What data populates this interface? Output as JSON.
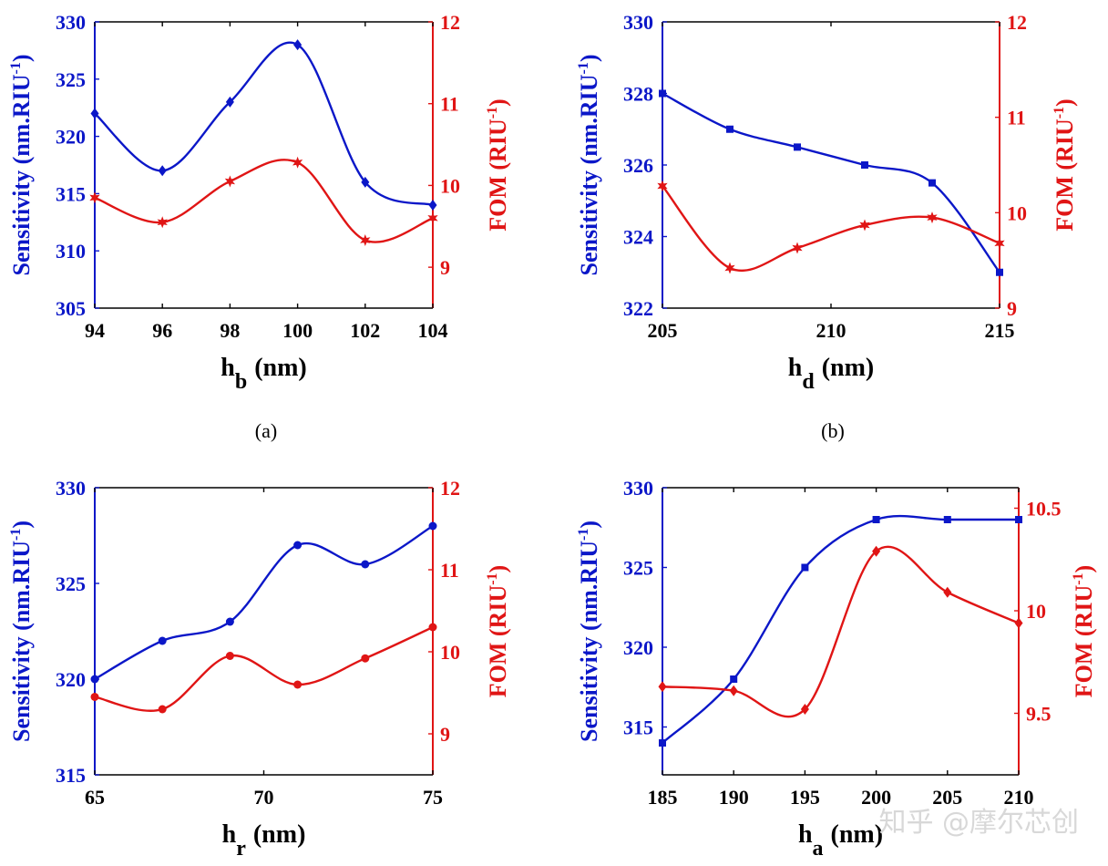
{
  "colors": {
    "sensitivity": "#0b17c8",
    "fom": "#e01515",
    "axis": "#000000"
  },
  "watermark": "知乎 @摩尔芯创",
  "chart_data": [
    {
      "type": "line",
      "caption": "(a)",
      "xlabel": "h",
      "xlabel_sub": "b",
      "xlabel_unit": "(nm)",
      "ylabel_left": "Sensitivity (nm.RIU",
      "ylabel_right": "FOM (RIU",
      "ylabel_sup": "-1",
      "xlim": [
        94,
        104
      ],
      "ylim_left": [
        305,
        330
      ],
      "ylim_right": [
        8.5,
        12
      ],
      "xticks": [
        94,
        96,
        98,
        100,
        102,
        104
      ],
      "yticks_left": [
        305,
        310,
        315,
        320,
        325,
        330
      ],
      "yticks_right": [
        9,
        10,
        11,
        12
      ],
      "series": [
        {
          "name": "Sensitivity",
          "axis": "left",
          "marker": "diamond",
          "x": [
            94,
            96,
            98,
            100,
            102,
            104
          ],
          "y": [
            322,
            317,
            323,
            328,
            316,
            314
          ]
        },
        {
          "name": "FOM",
          "axis": "right",
          "marker": "star",
          "x": [
            94,
            96,
            98,
            100,
            102,
            104
          ],
          "y": [
            9.85,
            9.55,
            10.05,
            10.28,
            9.33,
            9.6
          ]
        }
      ]
    },
    {
      "type": "line",
      "caption": "(b)",
      "xlabel": "h",
      "xlabel_sub": "d",
      "xlabel_unit": "(nm)",
      "ylabel_left": "Sensitivity (nm.RIU",
      "ylabel_right": "FOM (RIU",
      "ylabel_sup": "-1",
      "xlim": [
        205,
        215
      ],
      "ylim_left": [
        322,
        330
      ],
      "ylim_right": [
        9,
        12
      ],
      "xticks": [
        205,
        210,
        215
      ],
      "yticks_left": [
        322,
        324,
        326,
        328,
        330
      ],
      "yticks_right": [
        9,
        10,
        11,
        12
      ],
      "series": [
        {
          "name": "Sensitivity",
          "axis": "left",
          "marker": "square",
          "x": [
            205,
            207,
            209,
            211,
            213,
            215
          ],
          "y": [
            328,
            327,
            326.5,
            326,
            325.5,
            323
          ]
        },
        {
          "name": "FOM",
          "axis": "right",
          "marker": "star",
          "x": [
            205,
            207,
            209,
            211,
            213,
            215
          ],
          "y": [
            10.28,
            9.42,
            9.63,
            9.87,
            9.95,
            9.68
          ]
        }
      ]
    },
    {
      "type": "line",
      "caption": "",
      "xlabel": "h",
      "xlabel_sub": "r",
      "xlabel_unit": "(nm)",
      "ylabel_left": "Sensitivity (nm.RIU",
      "ylabel_right": "FOM (RIU",
      "ylabel_sup": "-1",
      "xlim": [
        65,
        75
      ],
      "ylim_left": [
        315,
        330
      ],
      "ylim_right": [
        8.5,
        12
      ],
      "xticks": [
        65,
        70,
        75
      ],
      "yticks_left": [
        315,
        320,
        325,
        330
      ],
      "yticks_right": [
        9,
        10,
        11,
        12
      ],
      "series": [
        {
          "name": "Sensitivity",
          "axis": "left",
          "marker": "circle",
          "x": [
            65,
            67,
            69,
            71,
            73,
            75
          ],
          "y": [
            320,
            322,
            323,
            327,
            326,
            328
          ]
        },
        {
          "name": "FOM",
          "axis": "right",
          "marker": "circle",
          "x": [
            65,
            67,
            69,
            71,
            73,
            75
          ],
          "y": [
            9.45,
            9.3,
            9.95,
            9.6,
            9.92,
            10.3
          ]
        }
      ]
    },
    {
      "type": "line",
      "caption": "",
      "xlabel": "h",
      "xlabel_sub": "a",
      "xlabel_unit": "(nm)",
      "ylabel_left": "Sensitivity (nm.RIU",
      "ylabel_right": "FOM (RIU",
      "ylabel_sup": "-1",
      "xlim": [
        185,
        210
      ],
      "ylim_left": [
        312,
        330
      ],
      "ylim_right": [
        9.2,
        10.6
      ],
      "xticks": [
        185,
        190,
        195,
        200,
        205,
        210
      ],
      "yticks_left": [
        315,
        320,
        325,
        330
      ],
      "yticks_right": [
        9.5,
        10,
        10.5
      ],
      "series": [
        {
          "name": "Sensitivity",
          "axis": "left",
          "marker": "square",
          "x": [
            185,
            190,
            195,
            200,
            205,
            210
          ],
          "y": [
            314,
            318,
            325,
            328,
            328,
            328
          ]
        },
        {
          "name": "FOM",
          "axis": "right",
          "marker": "diamond",
          "x": [
            185,
            190,
            195,
            200,
            205,
            210
          ],
          "y": [
            9.63,
            9.61,
            9.52,
            10.29,
            10.09,
            9.94
          ]
        }
      ]
    }
  ]
}
